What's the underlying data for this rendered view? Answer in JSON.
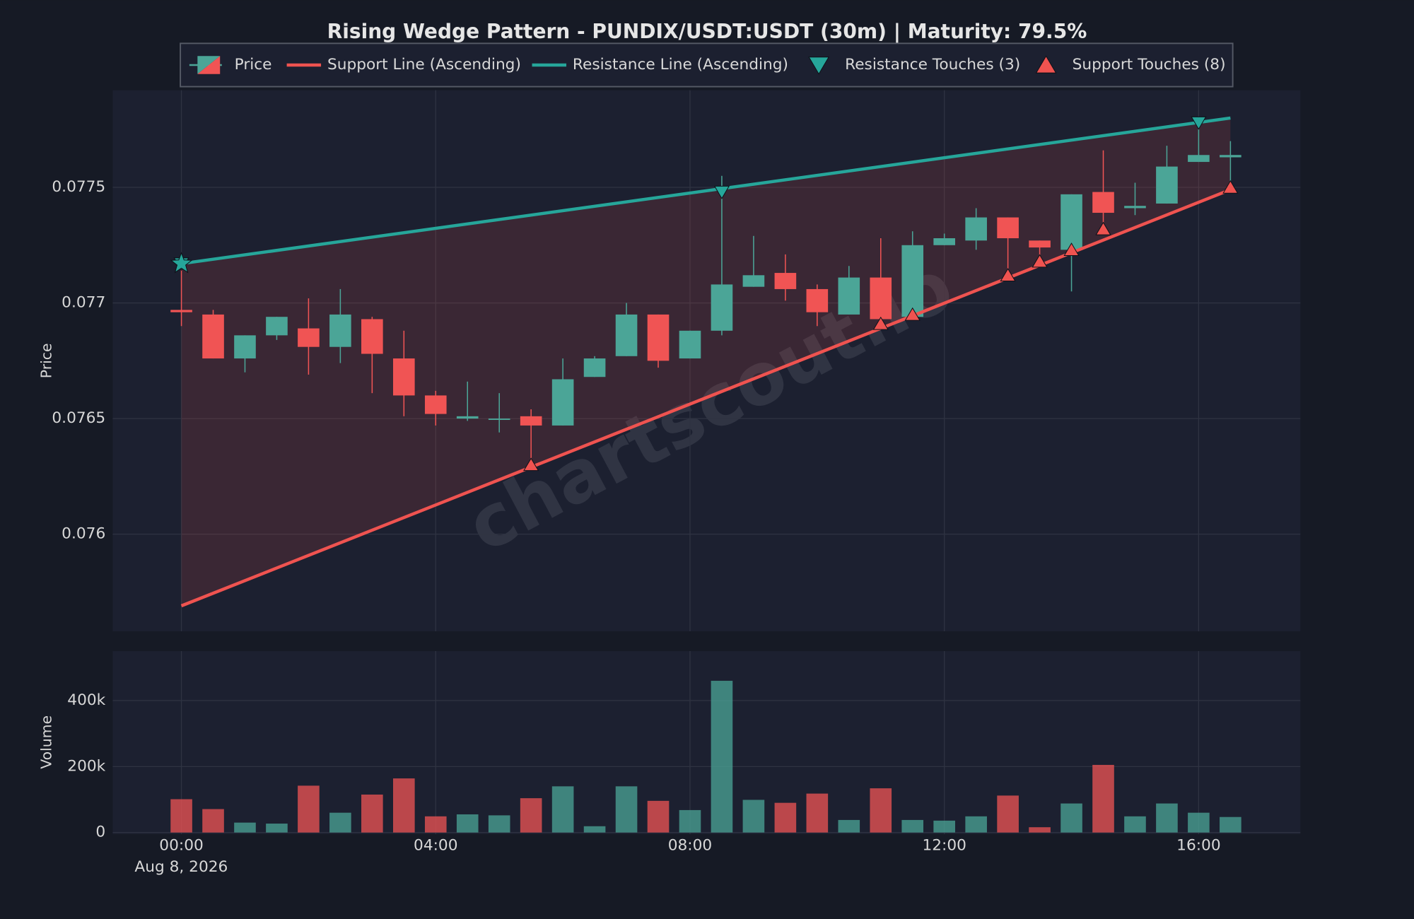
{
  "chart_data": {
    "type": "candlestick",
    "title": "Rising Wedge Pattern - PUNDIX/USDT:USDT (30m) | Maturity: 79.5%",
    "ylabel": "Price",
    "x": [
      0,
      0.5,
      1,
      1.5,
      2,
      2.5,
      3,
      3.5,
      4,
      4.5,
      5,
      5.5,
      6,
      6.5,
      7,
      7.5,
      8,
      8.5,
      9,
      9.5,
      10,
      10.5,
      11,
      11.5,
      12,
      12.5,
      13,
      13.5,
      14,
      14.5,
      15,
      15.5,
      16,
      16.5
    ],
    "xlim": [
      -1.08,
      17.6
    ],
    "xticks": [
      {
        "value": 0,
        "label": "00:00"
      },
      {
        "value": 4,
        "label": "04:00"
      },
      {
        "value": 8,
        "label": "08:00"
      },
      {
        "value": 12,
        "label": "12:00"
      },
      {
        "value": 16,
        "label": "16:00"
      }
    ],
    "x_date_label": "Aug 8, 2026",
    "ylim": [
      0.07558,
      0.07792
    ],
    "yticks": [
      0.076,
      0.0765,
      0.077,
      0.0775
    ],
    "grid": true,
    "candles": {
      "name": "Price",
      "up_color": "#4ba597",
      "down_color": "#f05454",
      "open": [
        0.07697,
        0.07695,
        0.07676,
        0.07686,
        0.07689,
        0.07681,
        0.07693,
        0.07676,
        0.0766,
        0.0765,
        0.0765,
        0.07651,
        0.07647,
        0.07668,
        0.07677,
        0.07695,
        0.07676,
        0.07688,
        0.07707,
        0.07713,
        0.07706,
        0.07695,
        0.07711,
        0.07694,
        0.07725,
        0.07727,
        0.07737,
        0.07727,
        0.07723,
        0.07748,
        0.07741,
        0.07743,
        0.07761,
        0.07763
      ],
      "high": [
        0.07715,
        0.07697,
        0.07686,
        0.07694,
        0.07702,
        0.07706,
        0.07694,
        0.07688,
        0.07662,
        0.07666,
        0.07661,
        0.07654,
        0.07676,
        0.07677,
        0.077,
        0.07695,
        0.07688,
        0.07755,
        0.07729,
        0.07721,
        0.07708,
        0.07716,
        0.07728,
        0.07731,
        0.0773,
        0.07741,
        0.07737,
        0.07727,
        0.07747,
        0.07766,
        0.07752,
        0.07768,
        0.07776,
        0.0777
      ],
      "low": [
        0.0769,
        0.07676,
        0.0767,
        0.07684,
        0.07669,
        0.07674,
        0.07661,
        0.07651,
        0.07647,
        0.07649,
        0.07644,
        0.0763,
        0.07647,
        0.07668,
        0.07677,
        0.07672,
        0.07676,
        0.07686,
        0.07707,
        0.07701,
        0.0769,
        0.07695,
        0.0769,
        0.07693,
        0.07725,
        0.07723,
        0.07714,
        0.0772,
        0.07705,
        0.07733,
        0.07738,
        0.07743,
        0.07761,
        0.07751
      ],
      "close": [
        0.07696,
        0.07676,
        0.07686,
        0.07694,
        0.07681,
        0.07695,
        0.07678,
        0.0766,
        0.07652,
        0.07651,
        0.0765,
        0.07647,
        0.07667,
        0.07676,
        0.07695,
        0.07675,
        0.07688,
        0.07708,
        0.07712,
        0.07706,
        0.07696,
        0.07711,
        0.07693,
        0.07725,
        0.07728,
        0.07737,
        0.07728,
        0.07724,
        0.07747,
        0.07739,
        0.07742,
        0.07759,
        0.07764,
        0.07764
      ]
    },
    "lines": [
      {
        "name": "Support Line (Ascending)",
        "color": "#ef5350",
        "x": [
          0,
          16.5
        ],
        "values": [
          0.07569,
          0.07749
        ]
      },
      {
        "name": "Resistance Line (Ascending)",
        "color": "#26a69a",
        "x": [
          0,
          16.5
        ],
        "values": [
          0.07717,
          0.0778
        ]
      }
    ],
    "touches": [
      {
        "name": "Resistance Touches (3)",
        "color": "#26a69a",
        "marker": "triangle-down",
        "x": [
          0,
          8.5,
          16
        ],
        "values": [
          0.07717,
          0.07748,
          0.07778
        ]
      },
      {
        "name": "Support Touches (8)",
        "color": "#ef5350",
        "marker": "triangle-up",
        "x": [
          5.5,
          11,
          11.5,
          13,
          13.5,
          14,
          14.5,
          16.5
        ],
        "values": [
          0.0763,
          0.07691,
          0.07695,
          0.07712,
          0.07718,
          0.07723,
          0.07732,
          0.0775
        ]
      }
    ],
    "start_marker": {
      "x": 0,
      "value": 0.07717,
      "color": "#26a69a"
    },
    "volume": {
      "ylabel": "Volume",
      "ylim": [
        -5000,
        550000
      ],
      "yticks": [
        0,
        {
          "value": 200000,
          "label": "200k"
        },
        {
          "value": 400000,
          "label": "400k"
        }
      ],
      "values": [
        101000,
        71000,
        30000,
        27000,
        142000,
        60000,
        115000,
        164000,
        49000,
        55000,
        52000,
        104000,
        140000,
        19000,
        140000,
        96000,
        68000,
        460000,
        99000,
        90000,
        118000,
        38000,
        134000,
        38000,
        36000,
        49000,
        112000,
        16000,
        88000,
        205000,
        49000,
        88000,
        60000,
        47000
      ]
    },
    "watermark": "chartscout.io"
  }
}
